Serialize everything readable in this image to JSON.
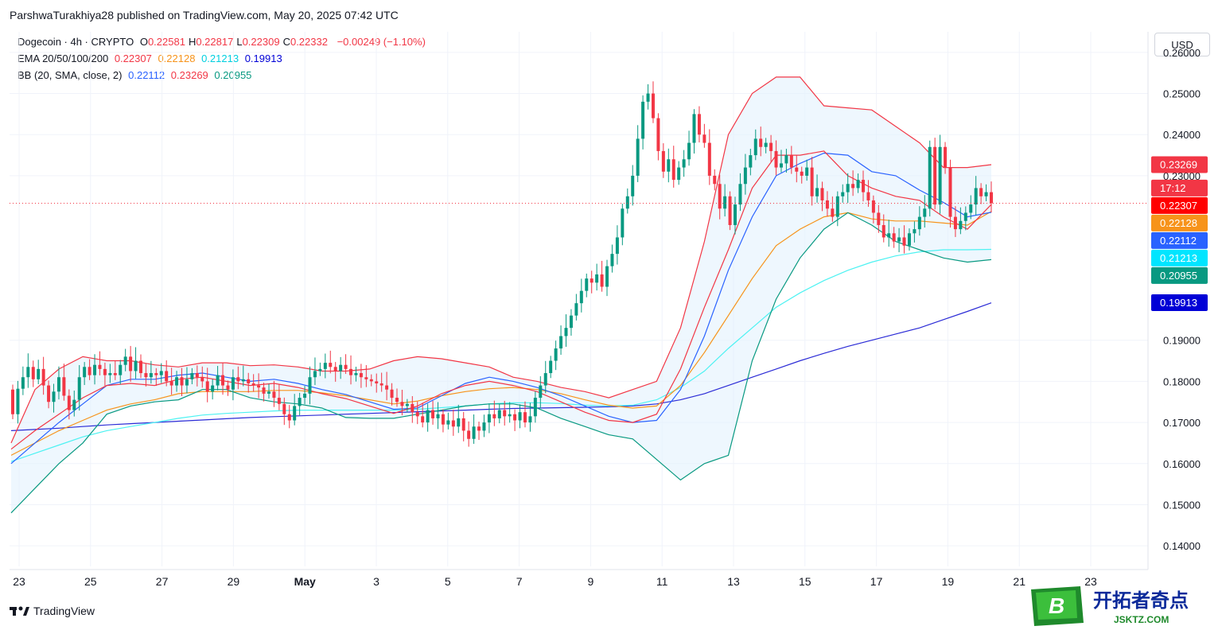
{
  "header": {
    "publisher_line": "ParshwaTurakhiya28 published on TradingView.com, May 20, 2025 07:42 UTC"
  },
  "legend": {
    "symbol": "Dogecoin · 4h · CRYPTO",
    "ohlc": [
      {
        "k": "O",
        "v": "0.22581"
      },
      {
        "k": "H",
        "v": "0.22817"
      },
      {
        "k": "L",
        "v": "0.22309"
      },
      {
        "k": "C",
        "v": "0.22332"
      }
    ],
    "change": "−0.00249 (−1.10%)",
    "ema_label": "EMA 20/50/100/200",
    "ema_values": [
      "0.22307",
      "0.22128",
      "0.21213",
      "0.19913"
    ],
    "bb_label": "BB (20, SMA, close, 2)",
    "bb_values": [
      "0.22112",
      "0.23269",
      "0.20955"
    ]
  },
  "currency_button": "USD",
  "footer": {
    "brand": "TradingView"
  },
  "watermark": {
    "brand_cn": "开拓者奇点",
    "domain": "JSKTZ.COM",
    "letter": "B"
  },
  "colors": {
    "up": "#089981",
    "down": "#f23645",
    "ema20": "#f23645",
    "ema50": "#f7931a",
    "ema100": "#4df2f2",
    "ema200": "#2b2bd6",
    "bb_basis": "#2962ff",
    "bb_upper": "#f23645",
    "bb_lower": "#089981",
    "bb_fill": "#e3f2fd"
  },
  "chart_data": {
    "type": "candlestick",
    "symbol": "Dogecoin",
    "timeframe": "4h",
    "currency": "USD",
    "y_range": [
      0.135,
      0.265
    ],
    "y_ticks": [
      "0.26000",
      "0.25000",
      "0.24000",
      "0.23000",
      "0.19000",
      "0.18000",
      "0.17000",
      "0.16000",
      "0.15000",
      "0.14000"
    ],
    "x_ticks": [
      "23",
      "25",
      "27",
      "29",
      "May",
      "3",
      "5",
      "7",
      "9",
      "11",
      "13",
      "15",
      "17",
      "19",
      "21",
      "23"
    ],
    "countdown": "17:12",
    "price_labels": [
      {
        "text": "0.23269",
        "value": 0.23269,
        "color": "#f23645"
      },
      {
        "text": "17:12",
        "value": 0.227,
        "color": "#f23645"
      },
      {
        "text": "0.22307",
        "value": 0.22307,
        "color": "#ff0000"
      },
      {
        "text": "0.22128",
        "value": 0.22128,
        "color": "#f7931a"
      },
      {
        "text": "0.22112",
        "value": 0.22112,
        "color": "#2962ff"
      },
      {
        "text": "0.21213",
        "value": 0.21213,
        "color": "#00e5ff"
      },
      {
        "text": "0.20955",
        "value": 0.20955,
        "color": "#089981"
      },
      {
        "text": "0.19913",
        "value": 0.19913,
        "color": "#0000d6"
      }
    ],
    "last_close": 0.22332,
    "closes": [
      0.172,
      0.1782,
      0.181,
      0.1835,
      0.1805,
      0.183,
      0.179,
      0.175,
      0.1775,
      0.181,
      0.1765,
      0.173,
      0.1755,
      0.181,
      0.1835,
      0.1815,
      0.184,
      0.183,
      0.1815,
      0.182,
      0.1815,
      0.184,
      0.186,
      0.1825,
      0.185,
      0.182,
      0.181,
      0.182,
      0.1815,
      0.1825,
      0.18,
      0.179,
      0.181,
      0.179,
      0.1805,
      0.182,
      0.181,
      0.18,
      0.1775,
      0.179,
      0.1815,
      0.179,
      0.178,
      0.181,
      0.18,
      0.1805,
      0.1795,
      0.179,
      0.1785,
      0.177,
      0.1775,
      0.176,
      0.1745,
      0.172,
      0.1705,
      0.174,
      0.176,
      0.177,
      0.181,
      0.1825,
      0.183,
      0.1845,
      0.1835,
      0.1825,
      0.184,
      0.183,
      0.1815,
      0.182,
      0.181,
      0.1805,
      0.18,
      0.1795,
      0.179,
      0.178,
      0.176,
      0.175,
      0.174,
      0.1745,
      0.1725,
      0.1715,
      0.17,
      0.173,
      0.171,
      0.172,
      0.1695,
      0.1705,
      0.169,
      0.171,
      0.168,
      0.166,
      0.169,
      0.168,
      0.17,
      0.172,
      0.171,
      0.173,
      0.1715,
      0.172,
      0.1705,
      0.1725,
      0.17,
      0.1715,
      0.176,
      0.179,
      0.182,
      0.185,
      0.188,
      0.191,
      0.193,
      0.196,
      0.199,
      0.202,
      0.205,
      0.204,
      0.206,
      0.203,
      0.208,
      0.211,
      0.215,
      0.222,
      0.225,
      0.23,
      0.239,
      0.248,
      0.25,
      0.244,
      0.236,
      0.231,
      0.234,
      0.229,
      0.232,
      0.234,
      0.238,
      0.245,
      0.24,
      0.238,
      0.23,
      0.228,
      0.222,
      0.225,
      0.218,
      0.223,
      0.228,
      0.232,
      0.235,
      0.239,
      0.237,
      0.238,
      0.236,
      0.232,
      0.233,
      0.235,
      0.232,
      0.231,
      0.23,
      0.232,
      0.225,
      0.227,
      0.224,
      0.222,
      0.22,
      0.225,
      0.226,
      0.228,
      0.227,
      0.229,
      0.226,
      0.224,
      0.221,
      0.218,
      0.215,
      0.216,
      0.214,
      0.215,
      0.213,
      0.216,
      0.217,
      0.22,
      0.222,
      0.237,
      0.223,
      0.237,
      0.232,
      0.22,
      0.217,
      0.219,
      0.221,
      0.223,
      0.227,
      0.225,
      0.226,
      0.22332
    ],
    "ema20": [
      0.1635,
      0.168,
      0.172,
      0.176,
      0.179,
      0.1795,
      0.179,
      0.1805,
      0.181,
      0.18,
      0.179,
      0.1795,
      0.1785,
      0.177,
      0.1758,
      0.174,
      0.1722,
      0.174,
      0.177,
      0.179,
      0.18,
      0.179,
      0.1775,
      0.175,
      0.1725,
      0.1705,
      0.17,
      0.172,
      0.183,
      0.198,
      0.212,
      0.227,
      0.235,
      0.235,
      0.236,
      0.23,
      0.227,
      0.225,
      0.224,
      0.22,
      0.217,
      0.223
    ],
    "ema50": [
      0.162,
      0.165,
      0.168,
      0.1705,
      0.173,
      0.1745,
      0.1755,
      0.177,
      0.1775,
      0.1775,
      0.1775,
      0.1778,
      0.1778,
      0.1772,
      0.1765,
      0.1755,
      0.1745,
      0.1752,
      0.1765,
      0.1775,
      0.1782,
      0.1785,
      0.178,
      0.177,
      0.1755,
      0.1742,
      0.1735,
      0.174,
      0.179,
      0.187,
      0.196,
      0.205,
      0.213,
      0.217,
      0.22,
      0.221,
      0.2195,
      0.219,
      0.219,
      0.2185,
      0.218,
      0.2213
    ],
    "ema100": [
      0.1605,
      0.1625,
      0.1645,
      0.1665,
      0.168,
      0.169,
      0.17,
      0.171,
      0.1718,
      0.1722,
      0.1725,
      0.1728,
      0.173,
      0.173,
      0.173,
      0.173,
      0.173,
      0.1732,
      0.1736,
      0.174,
      0.1745,
      0.1748,
      0.1748,
      0.1746,
      0.1742,
      0.174,
      0.1742,
      0.1755,
      0.1785,
      0.1825,
      0.188,
      0.193,
      0.198,
      0.2015,
      0.2045,
      0.207,
      0.209,
      0.2105,
      0.2115,
      0.212,
      0.212,
      0.2121
    ],
    "ema200": [
      0.168,
      0.1683,
      0.1686,
      0.169,
      0.1694,
      0.1697,
      0.17,
      0.1703,
      0.1706,
      0.1709,
      0.1712,
      0.1714,
      0.1716,
      0.1718,
      0.172,
      0.1722,
      0.1724,
      0.1726,
      0.1728,
      0.173,
      0.1732,
      0.1734,
      0.1735,
      0.1736,
      0.1737,
      0.1738,
      0.174,
      0.1745,
      0.1755,
      0.177,
      0.179,
      0.181,
      0.183,
      0.185,
      0.1868,
      0.1885,
      0.19,
      0.1915,
      0.193,
      0.195,
      0.197,
      0.1991
    ],
    "bb_basis": [
      0.16,
      0.165,
      0.17,
      0.1745,
      0.179,
      0.1805,
      0.1805,
      0.1815,
      0.182,
      0.181,
      0.18,
      0.1805,
      0.1795,
      0.178,
      0.1768,
      0.175,
      0.1732,
      0.1735,
      0.1765,
      0.1795,
      0.181,
      0.18,
      0.1785,
      0.1765,
      0.174,
      0.1715,
      0.17,
      0.1705,
      0.178,
      0.191,
      0.207,
      0.22,
      0.23,
      0.233,
      0.2355,
      0.235,
      0.231,
      0.23,
      0.2265,
      0.2235,
      0.22,
      0.2211
    ],
    "bb_upper": [
      0.165,
      0.178,
      0.183,
      0.186,
      0.185,
      0.185,
      0.184,
      0.1835,
      0.1845,
      0.1845,
      0.1838,
      0.184,
      0.1835,
      0.1825,
      0.1825,
      0.183,
      0.185,
      0.186,
      0.1855,
      0.1845,
      0.1835,
      0.181,
      0.18,
      0.1785,
      0.1775,
      0.176,
      0.178,
      0.18,
      0.193,
      0.214,
      0.24,
      0.25,
      0.254,
      0.254,
      0.247,
      0.2465,
      0.246,
      0.242,
      0.238,
      0.232,
      0.232,
      0.2327
    ],
    "bb_lower": [
      0.148,
      0.154,
      0.16,
      0.165,
      0.172,
      0.174,
      0.175,
      0.1755,
      0.178,
      0.178,
      0.176,
      0.175,
      0.1745,
      0.1735,
      0.1712,
      0.171,
      0.171,
      0.172,
      0.173,
      0.174,
      0.1745,
      0.1745,
      0.1735,
      0.171,
      0.169,
      0.167,
      0.166,
      0.161,
      0.156,
      0.16,
      0.162,
      0.185,
      0.2,
      0.21,
      0.217,
      0.221,
      0.218,
      0.214,
      0.212,
      0.21,
      0.209,
      0.2096
    ]
  }
}
